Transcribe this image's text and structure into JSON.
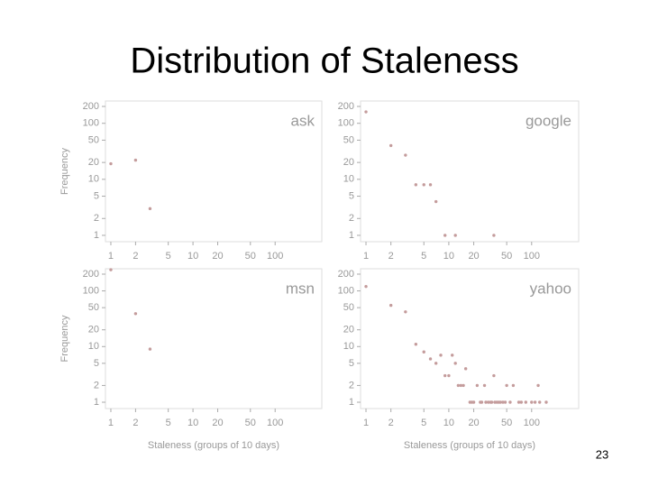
{
  "slide": {
    "title": "Distribution of Staleness",
    "page_number": "23"
  },
  "chart_data": [
    {
      "type": "scatter",
      "label": "ask",
      "ylabel": "Frequency",
      "log_x": true,
      "log_y": true,
      "color": "#c49c9c",
      "x": [
        1,
        2,
        3
      ],
      "values": [
        19,
        22,
        3
      ],
      "xlim": [
        0.86,
        370
      ],
      "ylim": [
        0.77,
        250
      ],
      "xticks": [
        1,
        2,
        5,
        10,
        20,
        50,
        100
      ],
      "yticks": [
        1,
        2,
        5,
        10,
        20,
        50,
        100,
        200
      ]
    },
    {
      "type": "scatter",
      "label": "google",
      "log_x": true,
      "log_y": true,
      "color": "#c49c9c",
      "x": [
        1,
        2,
        3,
        4,
        5,
        6,
        7,
        9,
        12,
        35
      ],
      "values": [
        160,
        40,
        27,
        8,
        8,
        8,
        4,
        1,
        1,
        1
      ],
      "xlim": [
        0.86,
        370
      ],
      "ylim": [
        0.77,
        250
      ],
      "xticks": [
        1,
        2,
        5,
        10,
        20,
        50,
        100
      ],
      "yticks": [
        1,
        2,
        5,
        10,
        20,
        50,
        100,
        200
      ]
    },
    {
      "type": "scatter",
      "label": "msn",
      "ylabel": "Frequency",
      "xlabel": "Staleness (groups of 10 days)",
      "log_x": true,
      "log_y": true,
      "color": "#c49c9c",
      "x": [
        1,
        2,
        3
      ],
      "values": [
        240,
        39,
        9
      ],
      "xlim": [
        0.86,
        370
      ],
      "ylim": [
        0.77,
        250
      ],
      "xticks": [
        1,
        2,
        5,
        10,
        20,
        50,
        100
      ],
      "yticks": [
        1,
        2,
        5,
        10,
        20,
        50,
        100,
        200
      ]
    },
    {
      "type": "scatter",
      "label": "yahoo",
      "xlabel": "Staleness (groups of 10 days)",
      "log_x": true,
      "log_y": true,
      "color": "#c49c9c",
      "x": [
        1,
        2,
        3,
        4,
        5,
        6,
        7,
        8,
        9,
        10,
        11,
        12,
        13,
        14,
        15,
        16,
        18,
        19,
        20,
        22,
        24,
        25,
        27,
        28,
        30,
        32,
        33,
        35,
        36,
        38,
        40,
        42,
        45,
        48,
        50,
        55,
        60,
        70,
        75,
        85,
        100,
        110,
        120,
        125,
        150
      ],
      "values": [
        120,
        55,
        42,
        11,
        8,
        6,
        5,
        7,
        3,
        3,
        7,
        5,
        2,
        2,
        2,
        4,
        1,
        1,
        1,
        2,
        1,
        1,
        2,
        1,
        1,
        1,
        1,
        3,
        1,
        1,
        1,
        1,
        1,
        1,
        2,
        1,
        2,
        1,
        1,
        1,
        1,
        1,
        2,
        1,
        1
      ],
      "xlim": [
        0.86,
        370
      ],
      "ylim": [
        0.77,
        250
      ],
      "xticks": [
        1,
        2,
        5,
        10,
        20,
        50,
        100
      ],
      "yticks": [
        1,
        2,
        5,
        10,
        20,
        50,
        100,
        200
      ]
    }
  ]
}
